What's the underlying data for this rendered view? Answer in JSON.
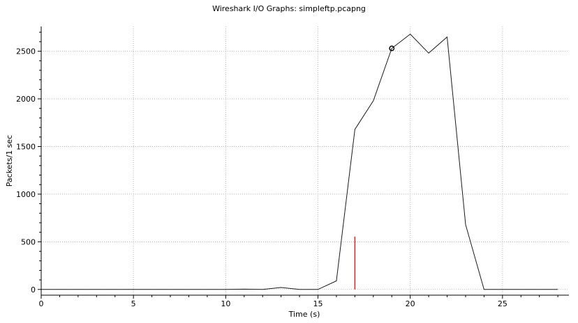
{
  "chart_data": {
    "type": "line",
    "title": "Wireshark I/O Graphs: simpleftp.pcapng",
    "xlabel": "Time (s)",
    "ylabel": "Packets/1 sec",
    "xlim": [
      0,
      28.6
    ],
    "ylim": [
      -60,
      2760
    ],
    "xticks": [
      0,
      5,
      10,
      15,
      20,
      25
    ],
    "yticks": [
      0,
      500,
      1000,
      1500,
      2000,
      2500
    ],
    "grid": true,
    "series": [
      {
        "x": [
          0,
          1,
          2,
          3,
          4,
          5,
          6,
          7,
          8,
          9,
          10,
          11,
          12,
          13,
          14,
          15,
          16,
          17,
          18,
          19,
          20,
          21,
          22,
          23,
          24,
          25,
          26,
          27,
          28
        ],
        "values": [
          0,
          0,
          0,
          0,
          0,
          0,
          0,
          0,
          0,
          0,
          0,
          3,
          0,
          20,
          0,
          0,
          90,
          1680,
          1980,
          2530,
          2680,
          2480,
          2650,
          680,
          0,
          0,
          0,
          0,
          0
        ],
        "color": "#1a1a1a"
      },
      {
        "x": [
          17
        ],
        "values": [
          555
        ],
        "style": "impulse",
        "color": "#d62728"
      }
    ],
    "highlight_point": {
      "x": 19,
      "y": 2530
    }
  }
}
